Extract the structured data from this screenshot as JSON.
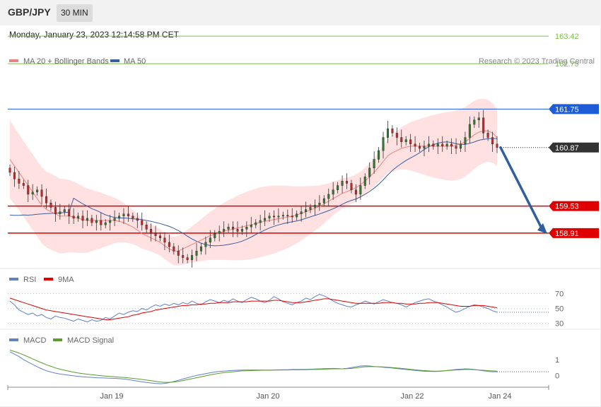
{
  "header": {
    "pair": "GBP/JPY",
    "timeframe": "30 MIN",
    "datetime": "Monday, January 23, 2023 12:14:58 PM CET"
  },
  "colors": {
    "ma20": "#f08080",
    "ma50": "#3a5f9f",
    "band_fill": "#ffdcdc",
    "up": "#2e7d32",
    "down": "#c62828",
    "support": "#e00000",
    "resistance_blue": "#1e5bd6",
    "target_green": "#7cbf4a",
    "price_tag": "#333333",
    "arrow": "#2f5f9f",
    "rsi": "#6080c8",
    "rsi_ma": "#e00000",
    "macd": "#6080c8",
    "macd_signal": "#5a9e2a"
  },
  "chart_data": [
    {
      "type": "candlestick",
      "name": "price",
      "legend": [
        {
          "label": "MA 20 + Bollinger Bands",
          "color": "#f08080"
        },
        {
          "label": "MA 50",
          "color": "#3a5f9f"
        }
      ],
      "legend_placement": "top-left",
      "credit": "Research © 2023 Trading Central",
      "ylim": [
        158.1,
        163.6
      ],
      "x_ticks": [
        "Jan 19",
        "Jan 20",
        "Jan 22",
        "Jan 24"
      ],
      "levels": [
        {
          "value": 163.42,
          "label": "163.42",
          "style": "target"
        },
        {
          "value": 162.79,
          "label": "162.79",
          "style": "target"
        },
        {
          "value": 161.75,
          "label": "161.75",
          "style": "resistance"
        },
        {
          "value": 160.87,
          "label": "160.87",
          "style": "current"
        },
        {
          "value": 159.53,
          "label": "159.53",
          "style": "support"
        },
        {
          "value": 158.91,
          "label": "158.91",
          "style": "support"
        }
      ],
      "close": [
        160.3,
        160.15,
        160.05,
        160.0,
        159.8,
        159.85,
        159.9,
        159.75,
        159.6,
        159.5,
        159.35,
        159.4,
        159.45,
        159.3,
        159.25,
        159.3,
        159.2,
        159.25,
        159.15,
        159.2,
        159.1,
        159.15,
        159.2,
        159.25,
        159.3,
        159.35,
        159.3,
        159.25,
        159.2,
        159.1,
        159.0,
        158.9,
        158.85,
        158.8,
        158.7,
        158.6,
        158.5,
        158.4,
        158.35,
        158.3,
        158.4,
        158.5,
        158.6,
        158.7,
        158.8,
        158.9,
        158.95,
        159.0,
        159.05,
        159.0,
        158.95,
        159.0,
        159.05,
        159.1,
        159.15,
        159.2,
        159.25,
        159.3,
        159.28,
        159.3,
        159.32,
        159.3,
        159.28,
        159.35,
        159.4,
        159.45,
        159.5,
        159.55,
        159.6,
        159.7,
        159.8,
        159.9,
        160.0,
        160.1,
        160.05,
        159.9,
        159.8,
        160.0,
        160.2,
        160.4,
        160.6,
        160.8,
        161.1,
        161.3,
        161.2,
        161.1,
        161.0,
        161.05,
        160.95,
        160.9,
        160.85,
        160.9,
        160.95,
        160.9,
        160.95,
        160.9,
        160.95,
        160.9,
        160.85,
        160.95,
        161.1,
        161.4,
        161.5,
        161.55,
        161.2,
        161.1,
        160.95,
        160.87
      ],
      "ma20": [
        160.6,
        160.45,
        160.3,
        160.15,
        160.0,
        159.85,
        159.7,
        159.55,
        159.45,
        159.4,
        159.35,
        159.3,
        159.3,
        159.3,
        159.28,
        159.25,
        159.22,
        159.2,
        159.2,
        159.2,
        159.2,
        159.2,
        159.2,
        159.2,
        159.18,
        159.15,
        159.1,
        159.05,
        158.98,
        158.9,
        158.85,
        158.8,
        158.75,
        158.7,
        158.62,
        158.55,
        158.5,
        158.5,
        158.55,
        158.6,
        158.65,
        158.7,
        158.75,
        158.8,
        158.85,
        158.88,
        158.92,
        158.95,
        158.98,
        159.0,
        159.03,
        159.05,
        159.08,
        159.1,
        159.13,
        159.16,
        159.18,
        159.2,
        159.22,
        159.24,
        159.26,
        159.28,
        159.3,
        159.33,
        159.36,
        159.4,
        159.44,
        159.48,
        159.52,
        159.58,
        159.64,
        159.7,
        159.76,
        159.82,
        159.86,
        159.9,
        159.95,
        160.02,
        160.1,
        160.2,
        160.3,
        160.42,
        160.55,
        160.68,
        160.75,
        160.8,
        160.85,
        160.88,
        160.9,
        160.9,
        160.9,
        160.9,
        160.9,
        160.9,
        160.9,
        160.9,
        160.9,
        160.9,
        160.92,
        160.95,
        161.0,
        161.08,
        161.16,
        161.22,
        161.25,
        161.25,
        161.2,
        161.1
      ]
    },
    {
      "type": "line",
      "name": "RSI",
      "legend": [
        {
          "label": "RSI",
          "color": "#6080c8"
        },
        {
          "label": "9MA",
          "color": "#e00000"
        }
      ],
      "y_ticks": [
        70,
        50,
        30
      ],
      "ylim": [
        25,
        80
      ],
      "series": [
        {
          "name": "RSI",
          "values": [
            60,
            55,
            48,
            45,
            42,
            44,
            40,
            42,
            38,
            36,
            40,
            38,
            37,
            35,
            33,
            36,
            34,
            32,
            35,
            33,
            34,
            38,
            36,
            40,
            44,
            42,
            45,
            47,
            46,
            50,
            48,
            52,
            55,
            53,
            56,
            54,
            57,
            55,
            58,
            56,
            60,
            57,
            55,
            59,
            62,
            60,
            58,
            61,
            59,
            63,
            60,
            58,
            62,
            65,
            63,
            60,
            58,
            61,
            66,
            63,
            59,
            57,
            55,
            58,
            60,
            64,
            62,
            66,
            69,
            67,
            64,
            60,
            57,
            55,
            53,
            52,
            55,
            57,
            60,
            58,
            56,
            59,
            62,
            60,
            58,
            57,
            55,
            52,
            55,
            58,
            60,
            62,
            63,
            60,
            58,
            55,
            52,
            48,
            45,
            47,
            50,
            53,
            55,
            54,
            52,
            50,
            47,
            45
          ]
        },
        {
          "name": "9MA",
          "values": [
            64,
            62,
            60,
            58,
            56,
            54,
            52,
            50,
            48,
            47,
            46,
            45,
            44,
            43,
            42,
            41,
            40,
            39,
            38,
            37,
            36,
            35,
            35,
            36,
            37,
            38,
            39,
            41,
            42,
            44,
            45,
            46,
            48,
            49,
            50,
            51,
            52,
            53,
            54,
            54,
            55,
            55,
            56,
            56,
            57,
            57,
            58,
            58,
            58,
            59,
            59,
            59,
            59,
            60,
            60,
            60,
            60,
            60,
            61,
            61,
            60,
            59,
            58,
            58,
            58,
            59,
            60,
            61,
            62,
            63,
            63,
            62,
            61,
            60,
            59,
            58,
            57,
            57,
            57,
            57,
            57,
            57,
            58,
            58,
            58,
            57,
            57,
            56,
            56,
            56,
            57,
            57,
            58,
            58,
            58,
            57,
            56,
            55,
            54,
            53,
            53,
            53,
            54,
            54,
            54,
            53,
            52,
            51
          ]
        }
      ]
    },
    {
      "type": "line",
      "name": "MACD",
      "legend": [
        {
          "label": "MACD",
          "color": "#6080c8"
        },
        {
          "label": "MACD Signal",
          "color": "#5a9e2a"
        }
      ],
      "y_ticks": [
        1,
        0
      ],
      "ylim": [
        -0.65,
        1.85
      ],
      "series": [
        {
          "name": "MACD",
          "values": [
            1.5,
            1.35,
            1.2,
            1.0,
            0.85,
            0.7,
            0.55,
            0.42,
            0.3,
            0.22,
            0.15,
            0.1,
            0.06,
            0.02,
            -0.02,
            -0.05,
            -0.08,
            -0.1,
            -0.12,
            -0.14,
            -0.15,
            -0.16,
            -0.17,
            -0.18,
            -0.2,
            -0.22,
            -0.26,
            -0.3,
            -0.35,
            -0.4,
            -0.44,
            -0.47,
            -0.5,
            -0.52,
            -0.5,
            -0.45,
            -0.38,
            -0.3,
            -0.22,
            -0.14,
            -0.06,
            0.0,
            0.06,
            0.12,
            0.17,
            0.22,
            0.26,
            0.28,
            0.3,
            0.32,
            0.33,
            0.34,
            0.35,
            0.35,
            0.35,
            0.35,
            0.34,
            0.34,
            0.35,
            0.36,
            0.37,
            0.37,
            0.38,
            0.38,
            0.39,
            0.39,
            0.4,
            0.41,
            0.42,
            0.43,
            0.44,
            0.45,
            0.44,
            0.42,
            0.45,
            0.5,
            0.55,
            0.6,
            0.62,
            0.6,
            0.57,
            0.55,
            0.52,
            0.5,
            0.47,
            0.44,
            0.41,
            0.38,
            0.35,
            0.32,
            0.29,
            0.27,
            0.26,
            0.25,
            0.26,
            0.28,
            0.32,
            0.35,
            0.38,
            0.4,
            0.42,
            0.41,
            0.38,
            0.34,
            0.3,
            0.26,
            0.24,
            0.24
          ]
        },
        {
          "name": "MACD Signal",
          "values": [
            1.6,
            1.52,
            1.42,
            1.3,
            1.18,
            1.05,
            0.92,
            0.8,
            0.68,
            0.58,
            0.48,
            0.4,
            0.33,
            0.27,
            0.21,
            0.16,
            0.12,
            0.08,
            0.05,
            0.02,
            -0.01,
            -0.04,
            -0.06,
            -0.08,
            -0.1,
            -0.12,
            -0.15,
            -0.18,
            -0.21,
            -0.25,
            -0.29,
            -0.33,
            -0.37,
            -0.41,
            -0.43,
            -0.43,
            -0.41,
            -0.37,
            -0.32,
            -0.26,
            -0.2,
            -0.14,
            -0.08,
            -0.02,
            0.04,
            0.09,
            0.14,
            0.18,
            0.21,
            0.24,
            0.27,
            0.29,
            0.3,
            0.31,
            0.32,
            0.33,
            0.33,
            0.33,
            0.34,
            0.34,
            0.35,
            0.35,
            0.36,
            0.36,
            0.37,
            0.37,
            0.38,
            0.38,
            0.39,
            0.4,
            0.41,
            0.42,
            0.42,
            0.42,
            0.43,
            0.45,
            0.48,
            0.52,
            0.55,
            0.56,
            0.56,
            0.55,
            0.54,
            0.52,
            0.5,
            0.48,
            0.45,
            0.42,
            0.39,
            0.36,
            0.33,
            0.31,
            0.29,
            0.28,
            0.28,
            0.29,
            0.31,
            0.33,
            0.35,
            0.37,
            0.38,
            0.38,
            0.37,
            0.35,
            0.33,
            0.31,
            0.29,
            0.28
          ]
        }
      ]
    }
  ]
}
